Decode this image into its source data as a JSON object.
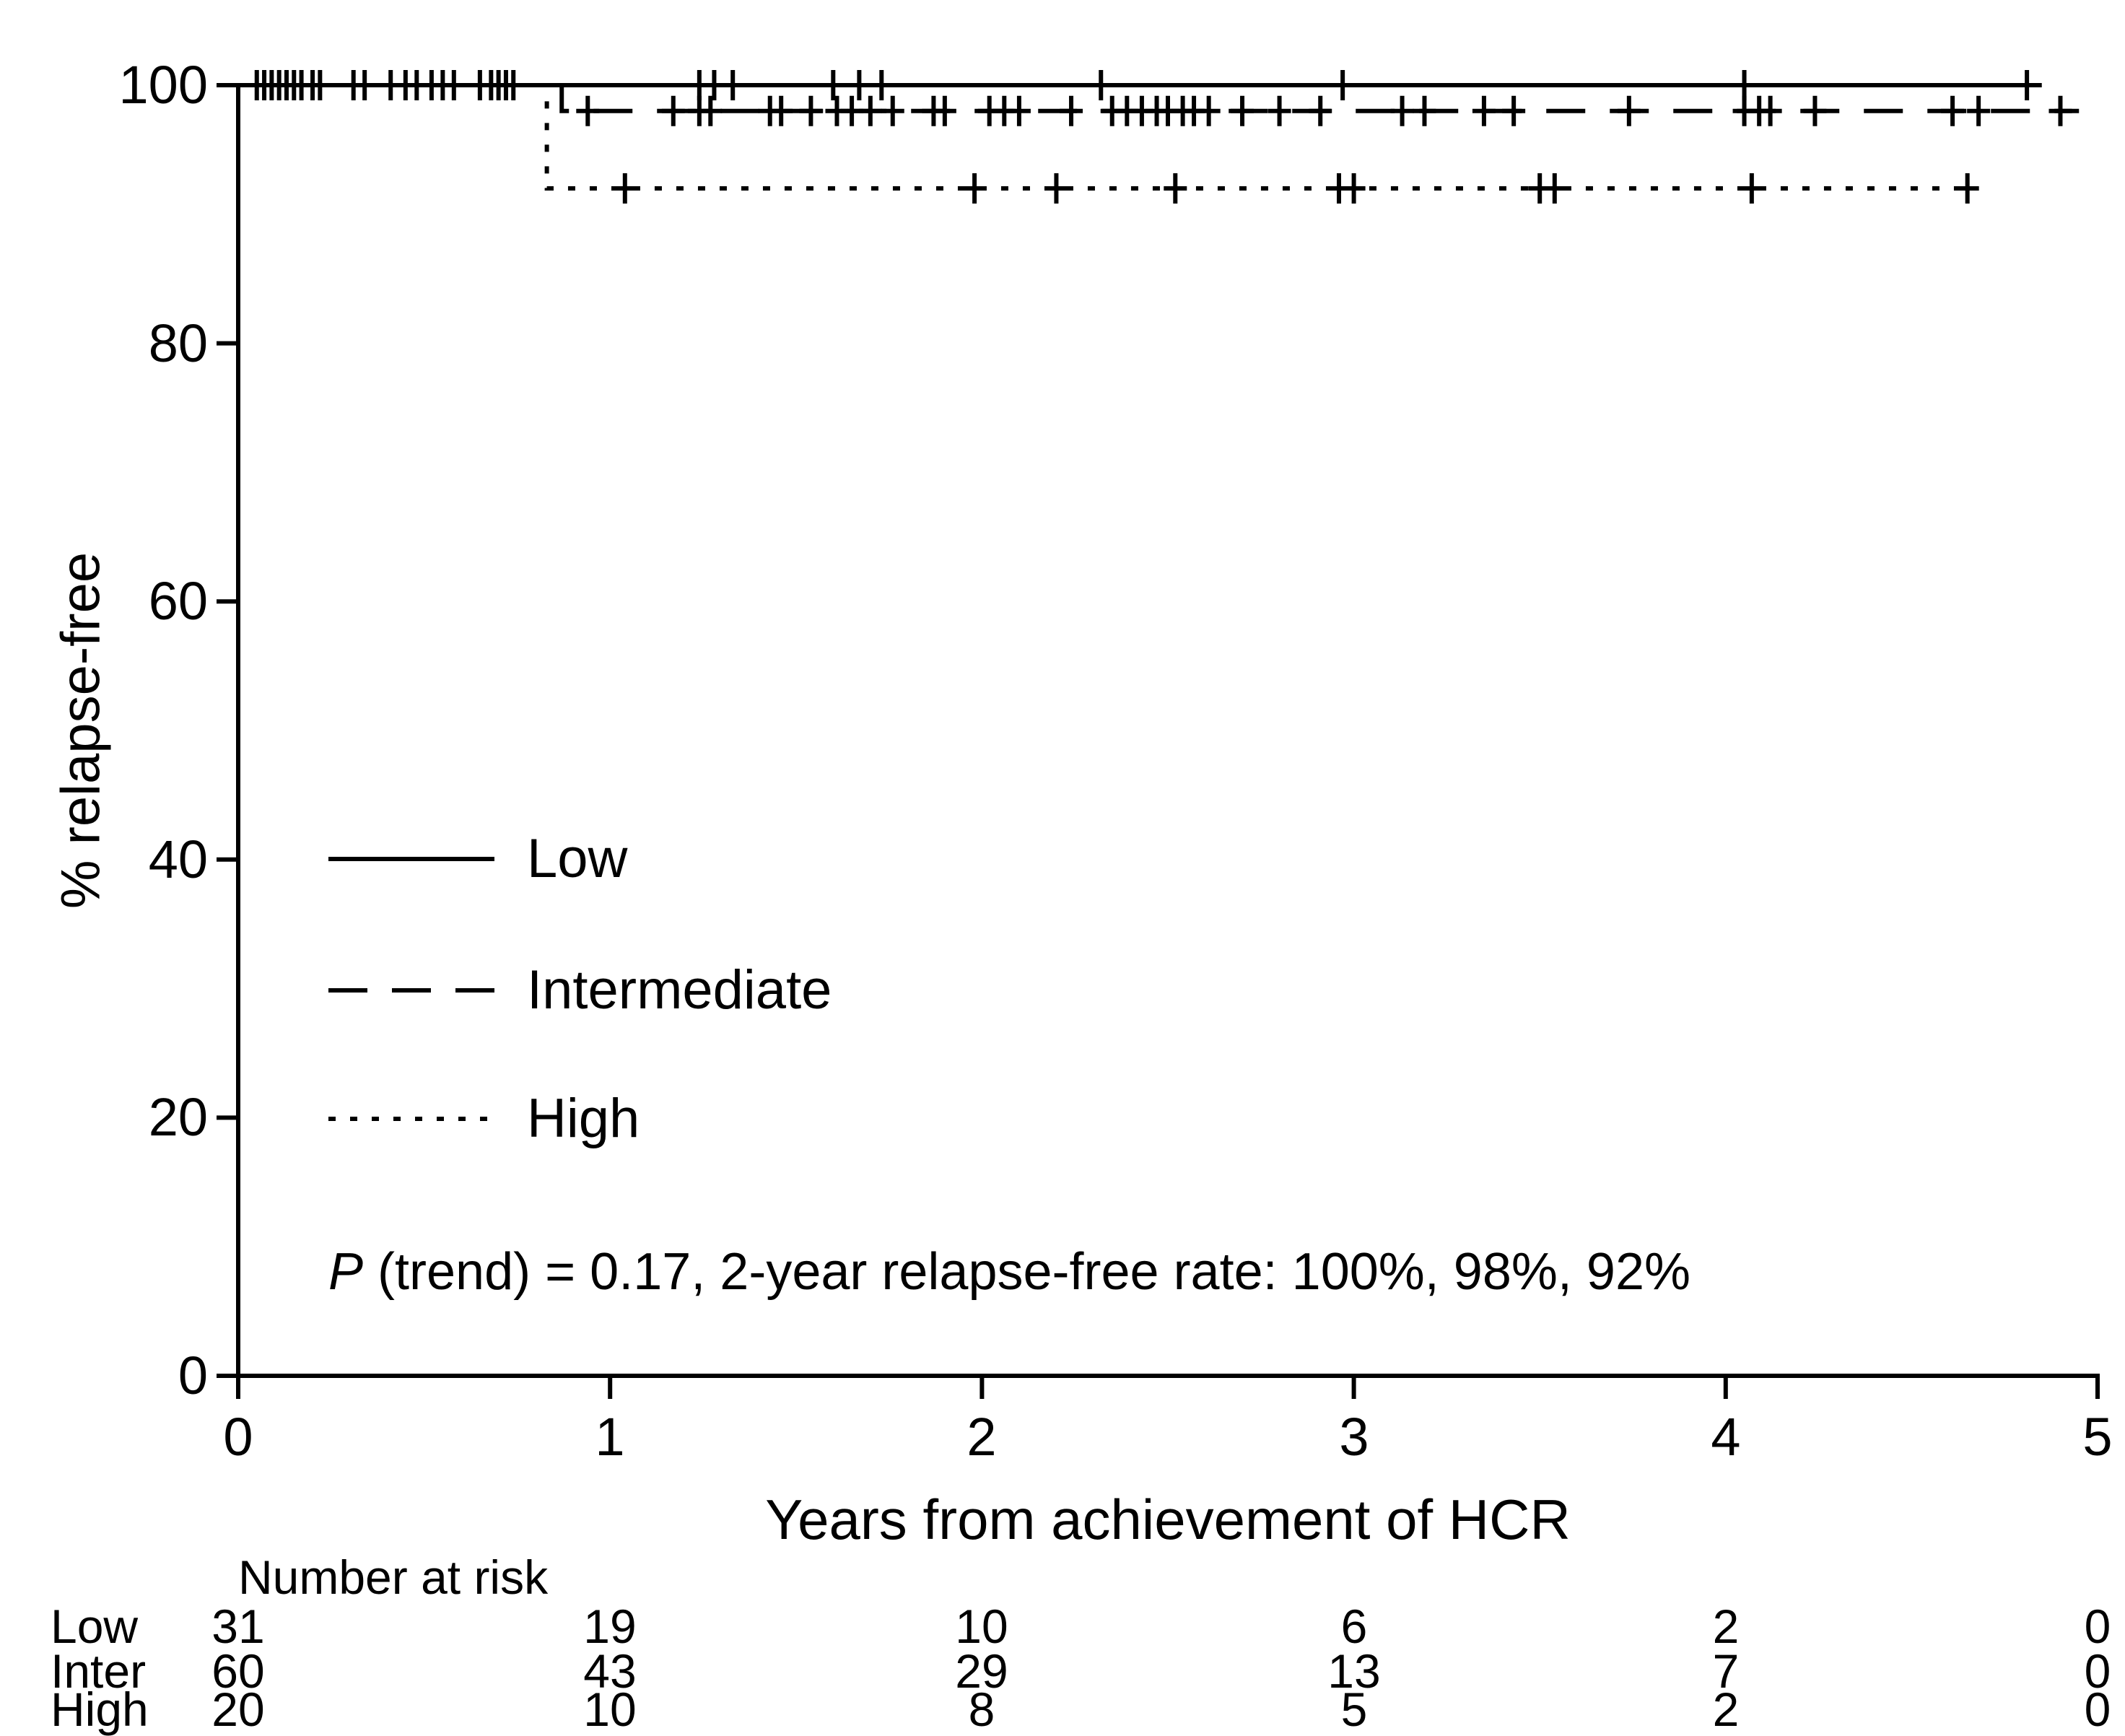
{
  "chart_data": {
    "type": "line",
    "curve_type": "kaplan-meier-step",
    "title": "",
    "xlabel": "Years from achievement of HCR",
    "ylabel": "% relapse-free",
    "xlim": [
      0,
      5
    ],
    "ylim": [
      0,
      100
    ],
    "xticks": [
      0,
      1,
      2,
      3,
      4,
      5
    ],
    "yticks": [
      0,
      20,
      40,
      60,
      80,
      100
    ],
    "grid": false,
    "legend_position": "inside-left-middle",
    "line_color": "#000000",
    "annotation": {
      "p_label": "P",
      "rest": " (trend) = 0.17, 2-year relapse-free rate: 100%, 98%, 92%"
    },
    "series": [
      {
        "name": "Low",
        "line_style": "solid",
        "color": "#000000",
        "steps": [
          [
            0,
            100
          ],
          [
            4.85,
            100
          ]
        ],
        "censor_y": 100,
        "censors_x": [
          0.05,
          0.07,
          0.09,
          0.11,
          0.13,
          0.15,
          0.17,
          0.2,
          0.22,
          0.31,
          0.34,
          0.41,
          0.45,
          0.48,
          0.52,
          0.55,
          0.58,
          0.65,
          0.68,
          0.7,
          0.72,
          0.74,
          1.24,
          1.28,
          1.33,
          1.6,
          1.67,
          1.73,
          2.32,
          2.97,
          4.05,
          4.81
        ]
      },
      {
        "name": "Intermediate",
        "line_style": "dashed",
        "color": "#000000",
        "steps": [
          [
            0,
            100
          ],
          [
            0.87,
            100
          ],
          [
            0.87,
            98
          ],
          [
            4.95,
            98
          ]
        ],
        "censor_y": 98,
        "censors_x": [
          0.94,
          1.17,
          1.24,
          1.27,
          1.43,
          1.46,
          1.54,
          1.61,
          1.65,
          1.7,
          1.76,
          1.87,
          1.9,
          2.02,
          2.06,
          2.1,
          2.24,
          2.35,
          2.39,
          2.43,
          2.47,
          2.5,
          2.54,
          2.57,
          2.61,
          2.7,
          2.8,
          2.91,
          3.13,
          3.19,
          3.35,
          3.43,
          3.74,
          4.05,
          4.09,
          4.12,
          4.24,
          4.61,
          4.68,
          4.9
        ]
      },
      {
        "name": "High",
        "line_style": "dotted",
        "color": "#000000",
        "steps": [
          [
            0,
            100
          ],
          [
            0.83,
            100
          ],
          [
            0.83,
            92
          ],
          [
            4.65,
            92
          ]
        ],
        "censor_y": 92,
        "censors_x": [
          1.04,
          1.98,
          2.2,
          2.52,
          2.96,
          3.0,
          3.5,
          3.54,
          4.07,
          4.65
        ]
      }
    ],
    "two_year_rates": {
      "Low": "100%",
      "Intermediate": "98%",
      "High": "92%"
    },
    "p_trend": "0.17"
  },
  "risk_table": {
    "title": "Number at risk",
    "columns": [
      0,
      1,
      2,
      3,
      4,
      5
    ],
    "rows": [
      {
        "label": "Low",
        "values": [
          "31",
          "19",
          "10",
          "6",
          "2",
          "0"
        ]
      },
      {
        "label": "Inter",
        "values": [
          "60",
          "43",
          "29",
          "13",
          "7",
          "0"
        ]
      },
      {
        "label": "High",
        "values": [
          "20",
          "10",
          "8",
          "5",
          "2",
          "0"
        ]
      }
    ]
  }
}
